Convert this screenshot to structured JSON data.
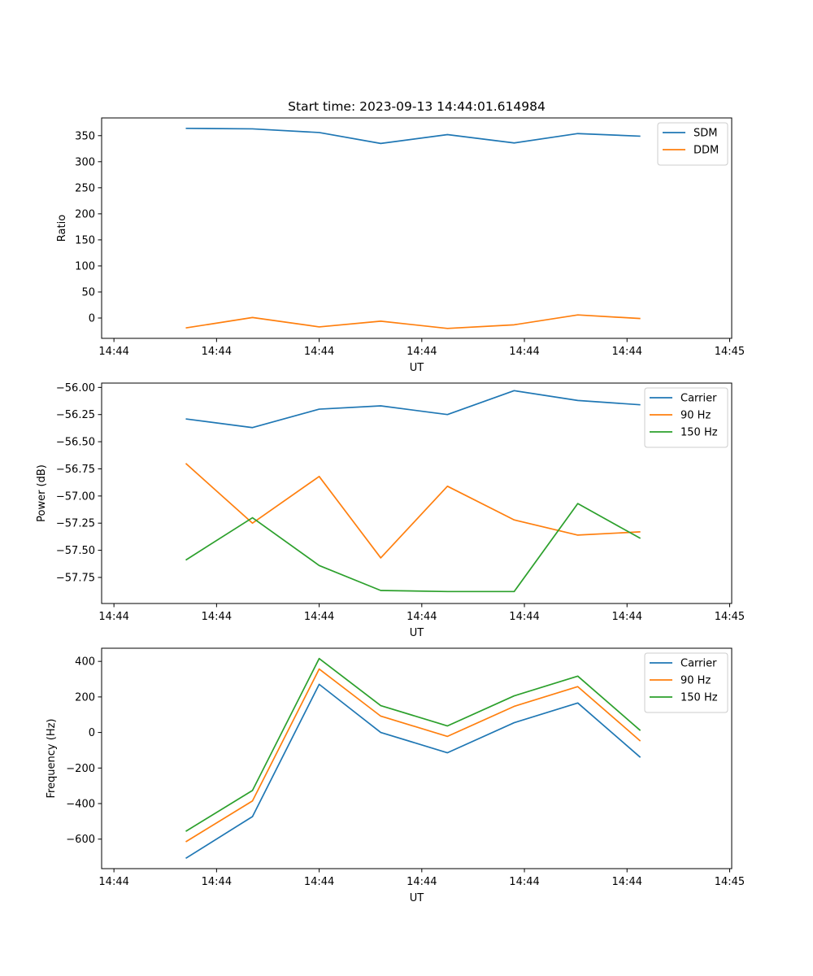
{
  "figure_title": "Start time: 2023-09-13 14:44:01.614984",
  "colors": {
    "blue": "#1f77b4",
    "orange": "#ff7f0e",
    "green": "#2ca02c"
  },
  "chart_data": [
    {
      "type": "line",
      "title": "Start time: 2023-09-13 14:44:01.614984",
      "xlabel": "UT",
      "ylabel": "Ratio",
      "x": [
        0.7,
        1.35,
        2.0,
        2.6,
        3.25,
        3.9,
        4.52,
        5.13
      ],
      "xlim": [
        0,
        6
      ],
      "x_ticks": [
        0,
        1,
        2,
        3,
        4,
        5,
        6
      ],
      "x_tick_labels": [
        "14:44",
        "14:44",
        "14:44",
        "14:44",
        "14:44",
        "14:44",
        "14:45"
      ],
      "ylim": [
        -39,
        384
      ],
      "y_ticks": [
        0,
        50,
        100,
        150,
        200,
        250,
        300,
        350
      ],
      "y_tick_labels": [
        "0",
        "50",
        "100",
        "150",
        "200",
        "250",
        "300",
        "350"
      ],
      "legend_position": "top-right",
      "series": [
        {
          "name": "SDM",
          "color": "#1f77b4",
          "values": [
            364,
            363,
            356,
            335,
            352,
            336,
            354,
            349
          ]
        },
        {
          "name": "DDM",
          "color": "#ff7f0e",
          "values": [
            -19,
            1,
            -17,
            -6,
            -20,
            -13,
            6,
            -1
          ]
        }
      ]
    },
    {
      "type": "line",
      "xlabel": "UT",
      "ylabel": "Power (dB)",
      "x": [
        0.7,
        1.35,
        2.0,
        2.6,
        3.25,
        3.9,
        4.52,
        5.13
      ],
      "xlim": [
        0,
        6
      ],
      "x_ticks": [
        0,
        1,
        2,
        3,
        4,
        5,
        6
      ],
      "x_tick_labels": [
        "14:44",
        "14:44",
        "14:44",
        "14:44",
        "14:44",
        "14:44",
        "14:45"
      ],
      "ylim": [
        -57.99,
        -55.96
      ],
      "y_ticks": [
        -56.0,
        -56.25,
        -56.5,
        -56.75,
        -57.0,
        -57.25,
        -57.5,
        -57.75
      ],
      "y_tick_labels": [
        "−56.00",
        "−56.25",
        "−56.50",
        "−56.75",
        "−57.00",
        "−57.25",
        "−57.50",
        "−57.75"
      ],
      "legend_position": "top-right",
      "series": [
        {
          "name": "Carrier",
          "color": "#1f77b4",
          "values": [
            -56.29,
            -56.37,
            -56.2,
            -56.17,
            -56.25,
            -56.03,
            -56.12,
            -56.16
          ]
        },
        {
          "name": "90 Hz",
          "color": "#ff7f0e",
          "values": [
            -56.7,
            -57.25,
            -56.82,
            -57.57,
            -56.91,
            -57.22,
            -57.36,
            -57.33
          ]
        },
        {
          "name": "150 Hz",
          "color": "#2ca02c",
          "values": [
            -57.59,
            -57.2,
            -57.64,
            -57.87,
            -57.88,
            -57.88,
            -57.07,
            -57.39
          ]
        }
      ]
    },
    {
      "type": "line",
      "xlabel": "UT",
      "ylabel": "Frequency (Hz)",
      "x": [
        0.7,
        1.35,
        2.0,
        2.6,
        3.25,
        3.9,
        4.52,
        5.13
      ],
      "xlim": [
        0,
        6
      ],
      "x_ticks": [
        0,
        1,
        2,
        3,
        4,
        5,
        6
      ],
      "x_tick_labels": [
        "14:44",
        "14:44",
        "14:44",
        "14:44",
        "14:44",
        "14:44",
        "14:45"
      ],
      "ylim": [
        -766,
        474
      ],
      "y_ticks": [
        -600,
        -400,
        -200,
        0,
        200,
        400
      ],
      "y_tick_labels": [
        "−600",
        "−400",
        "−200",
        "0",
        "200",
        "400"
      ],
      "legend_position": "top-right",
      "series": [
        {
          "name": "Carrier",
          "color": "#1f77b4",
          "values": [
            -708,
            -473,
            271,
            0,
            -114,
            55,
            166,
            -140
          ]
        },
        {
          "name": "90 Hz",
          "color": "#ff7f0e",
          "values": [
            -615,
            -385,
            357,
            92,
            -22,
            147,
            258,
            -48
          ]
        },
        {
          "name": "150 Hz",
          "color": "#2ca02c",
          "values": [
            -556,
            -326,
            416,
            151,
            37,
            206,
            317,
            11
          ]
        }
      ]
    }
  ]
}
